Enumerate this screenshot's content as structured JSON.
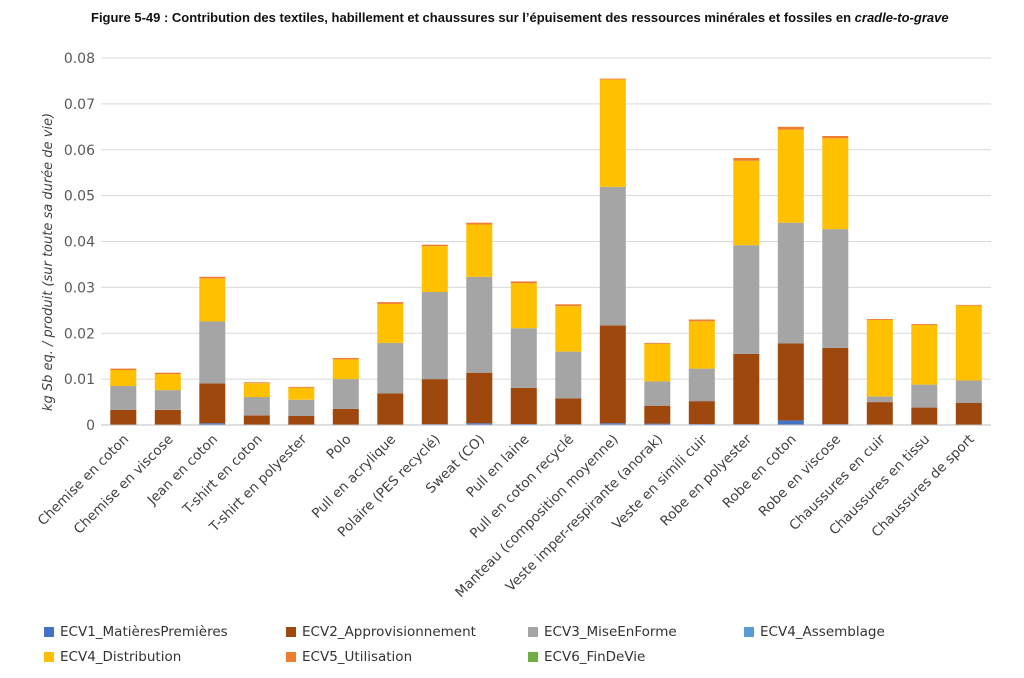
{
  "caption": {
    "prefix": "Figure 5-49 : Contribution des textiles, habillement et chaussures sur l’épuisement des ressources minérales et fossiles en ",
    "emphasis": "cradle-to-grave"
  },
  "chart_data": {
    "type": "bar",
    "stacked": true,
    "ylabel": "kg Sb eq. / produit (sur toute sa durée de vie)",
    "xlabel": "",
    "ylim": [
      0,
      0.08
    ],
    "yticks": [
      "0",
      "0.01",
      "0.02",
      "0.03",
      "0.04",
      "0.05",
      "0.06",
      "0.07",
      "0.08"
    ],
    "grid": true,
    "legend_position": "bottom",
    "categories": [
      "Chemise en coton",
      "Chemise en viscose",
      "Jean en coton",
      "T-shirt en coton",
      "T-shirt en polyester",
      "Polo",
      "Pull en acrylique",
      "Polaire (PES recyclé)",
      "Sweat (CO)",
      "Pull en laine",
      "Pull en coton recyclé",
      "Manteau (composition moyenne)",
      "Veste imper-respirante (anorak)",
      "Veste en simili cuir",
      "Robe en polyester",
      "Robe en coton",
      "Robe en viscose",
      "Chaussures en cuir",
      "Chaussures en tissu",
      "Chaussures de sport"
    ],
    "series": [
      {
        "name": "ECV1_MatièresPremières",
        "color": "#4472C4",
        "values": [
          0.0001,
          0.0001,
          0.0004,
          0.0001,
          0.0001,
          0.0001,
          0.0001,
          0.0002,
          0.0004,
          0.0002,
          0.0002,
          0.0004,
          0.0003,
          0.0002,
          0.0002,
          0.001,
          0.0002,
          0.0001,
          0.0001,
          0.0001
        ]
      },
      {
        "name": "ECV2_Approvisionnement",
        "color": "#9E480E",
        "values": [
          0.0032,
          0.0032,
          0.0087,
          0.002,
          0.0019,
          0.0034,
          0.0068,
          0.0098,
          0.011,
          0.0079,
          0.0056,
          0.0213,
          0.0039,
          0.005,
          0.0153,
          0.0168,
          0.0166,
          0.0049,
          0.0037,
          0.0047
        ]
      },
      {
        "name": "ECV3_MiseEnForme",
        "color": "#A5A5A5",
        "values": [
          0.0052,
          0.0043,
          0.0135,
          0.004,
          0.0035,
          0.0065,
          0.011,
          0.019,
          0.0209,
          0.013,
          0.0102,
          0.0302,
          0.0053,
          0.0071,
          0.0237,
          0.0263,
          0.0259,
          0.0012,
          0.005,
          0.0049
        ]
      },
      {
        "name": "ECV4_Assemblage",
        "color": "#5B9BD5",
        "values": [
          0,
          0,
          0,
          0,
          0,
          0,
          0,
          0,
          0,
          0,
          0,
          0,
          0,
          0,
          0,
          0,
          0,
          0,
          0,
          0
        ]
      },
      {
        "name": "ECV4_Distribution",
        "color": "#FFC000",
        "values": [
          0.0035,
          0.0035,
          0.0093,
          0.003,
          0.0026,
          0.0043,
          0.0085,
          0.01,
          0.0114,
          0.0098,
          0.0099,
          0.0234,
          0.0082,
          0.0103,
          0.0184,
          0.0203,
          0.0198,
          0.0167,
          0.013,
          0.0163
        ]
      },
      {
        "name": "ECV5_Utilisation",
        "color": "#ED7D31",
        "values": [
          0.0003,
          0.0003,
          0.0004,
          0.0002,
          0.0002,
          0.0003,
          0.0004,
          0.0003,
          0.0004,
          0.0004,
          0.0004,
          0.0002,
          0.0002,
          0.0004,
          0.0006,
          0.0006,
          0.0005,
          0.0002,
          0.0002,
          0.0001
        ]
      },
      {
        "name": "ECV6_FinDeVie",
        "color": "#70AD47",
        "values": [
          0,
          0,
          0,
          0,
          0,
          0,
          0,
          0,
          0,
          0,
          0,
          0,
          0,
          0,
          0,
          0,
          0,
          0,
          0,
          0
        ]
      }
    ]
  }
}
